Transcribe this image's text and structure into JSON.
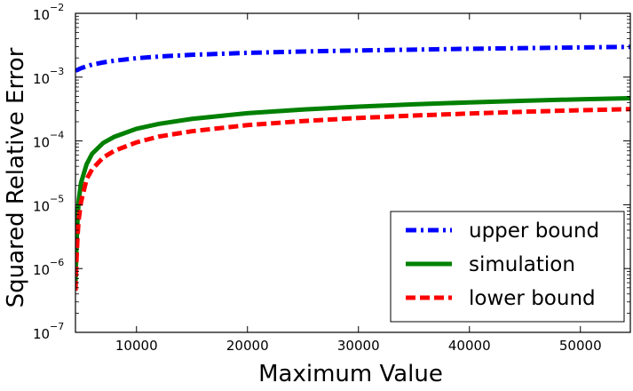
{
  "chart_data": {
    "type": "line",
    "title": "",
    "xlabel": "Maximum Value",
    "ylabel": "Squared Relative Error",
    "xscale": "linear",
    "yscale": "log",
    "xlim": [
      4500,
      54500
    ],
    "ylim": [
      1e-07,
      0.01
    ],
    "xticks": [
      10000,
      20000,
      30000,
      40000,
      50000
    ],
    "xtick_labels": [
      "10000",
      "20000",
      "30000",
      "40000",
      "50000"
    ],
    "yticks": [
      {
        "value": 1e-07,
        "base": "10",
        "exp": "−7"
      },
      {
        "value": 1e-06,
        "base": "10",
        "exp": "−6"
      },
      {
        "value": 1e-05,
        "base": "10",
        "exp": "−5"
      },
      {
        "value": 0.0001,
        "base": "10",
        "exp": "−4"
      },
      {
        "value": 0.001,
        "base": "10",
        "exp": "−3"
      },
      {
        "value": 0.01,
        "base": "10",
        "exp": "−2"
      }
    ],
    "legend_position": "bottom-right",
    "x": [
      4500,
      4550,
      4600,
      4700,
      4800,
      5000,
      5500,
      6000,
      7000,
      8000,
      10000,
      12000,
      15000,
      20000,
      25000,
      30000,
      35000,
      40000,
      45000,
      50000,
      54500
    ],
    "series": [
      {
        "name": "upper bound",
        "color": "#0000ff",
        "dash": "dashdot",
        "values": [
          0.00125,
          0.00127,
          0.00128,
          0.0013,
          0.00133,
          0.00138,
          0.00148,
          0.00157,
          0.0017,
          0.00181,
          0.00198,
          0.0021,
          0.00224,
          0.0024,
          0.00252,
          0.00262,
          0.0027,
          0.00278,
          0.00285,
          0.00292,
          0.00298
        ]
      },
      {
        "name": "simulation",
        "color": "#008000",
        "dash": "solid",
        "values": [
          6e-07,
          1.2e-06,
          2.5e-06,
          6.5e-06,
          1.2e-05,
          2.2e-05,
          4.3e-05,
          6.3e-05,
          9.3e-05,
          0.000116,
          0.000155,
          0.000185,
          0.000222,
          0.000272,
          0.000311,
          0.000345,
          0.000375,
          0.000402,
          0.000427,
          0.00045,
          0.000468
        ]
      },
      {
        "name": "lower bound",
        "color": "#ff0000",
        "dash": "dashed",
        "values": [
          4.5e-07,
          8e-07,
          1.5e-06,
          3.5e-06,
          6e-06,
          1.1e-05,
          2.5e-05,
          3.6e-05,
          5.5e-05,
          7e-05,
          9.5e-05,
          0.000117,
          0.000142,
          0.000177,
          0.000205,
          0.000229,
          0.00025,
          0.000269,
          0.000287,
          0.000303,
          0.000316
        ]
      }
    ]
  }
}
